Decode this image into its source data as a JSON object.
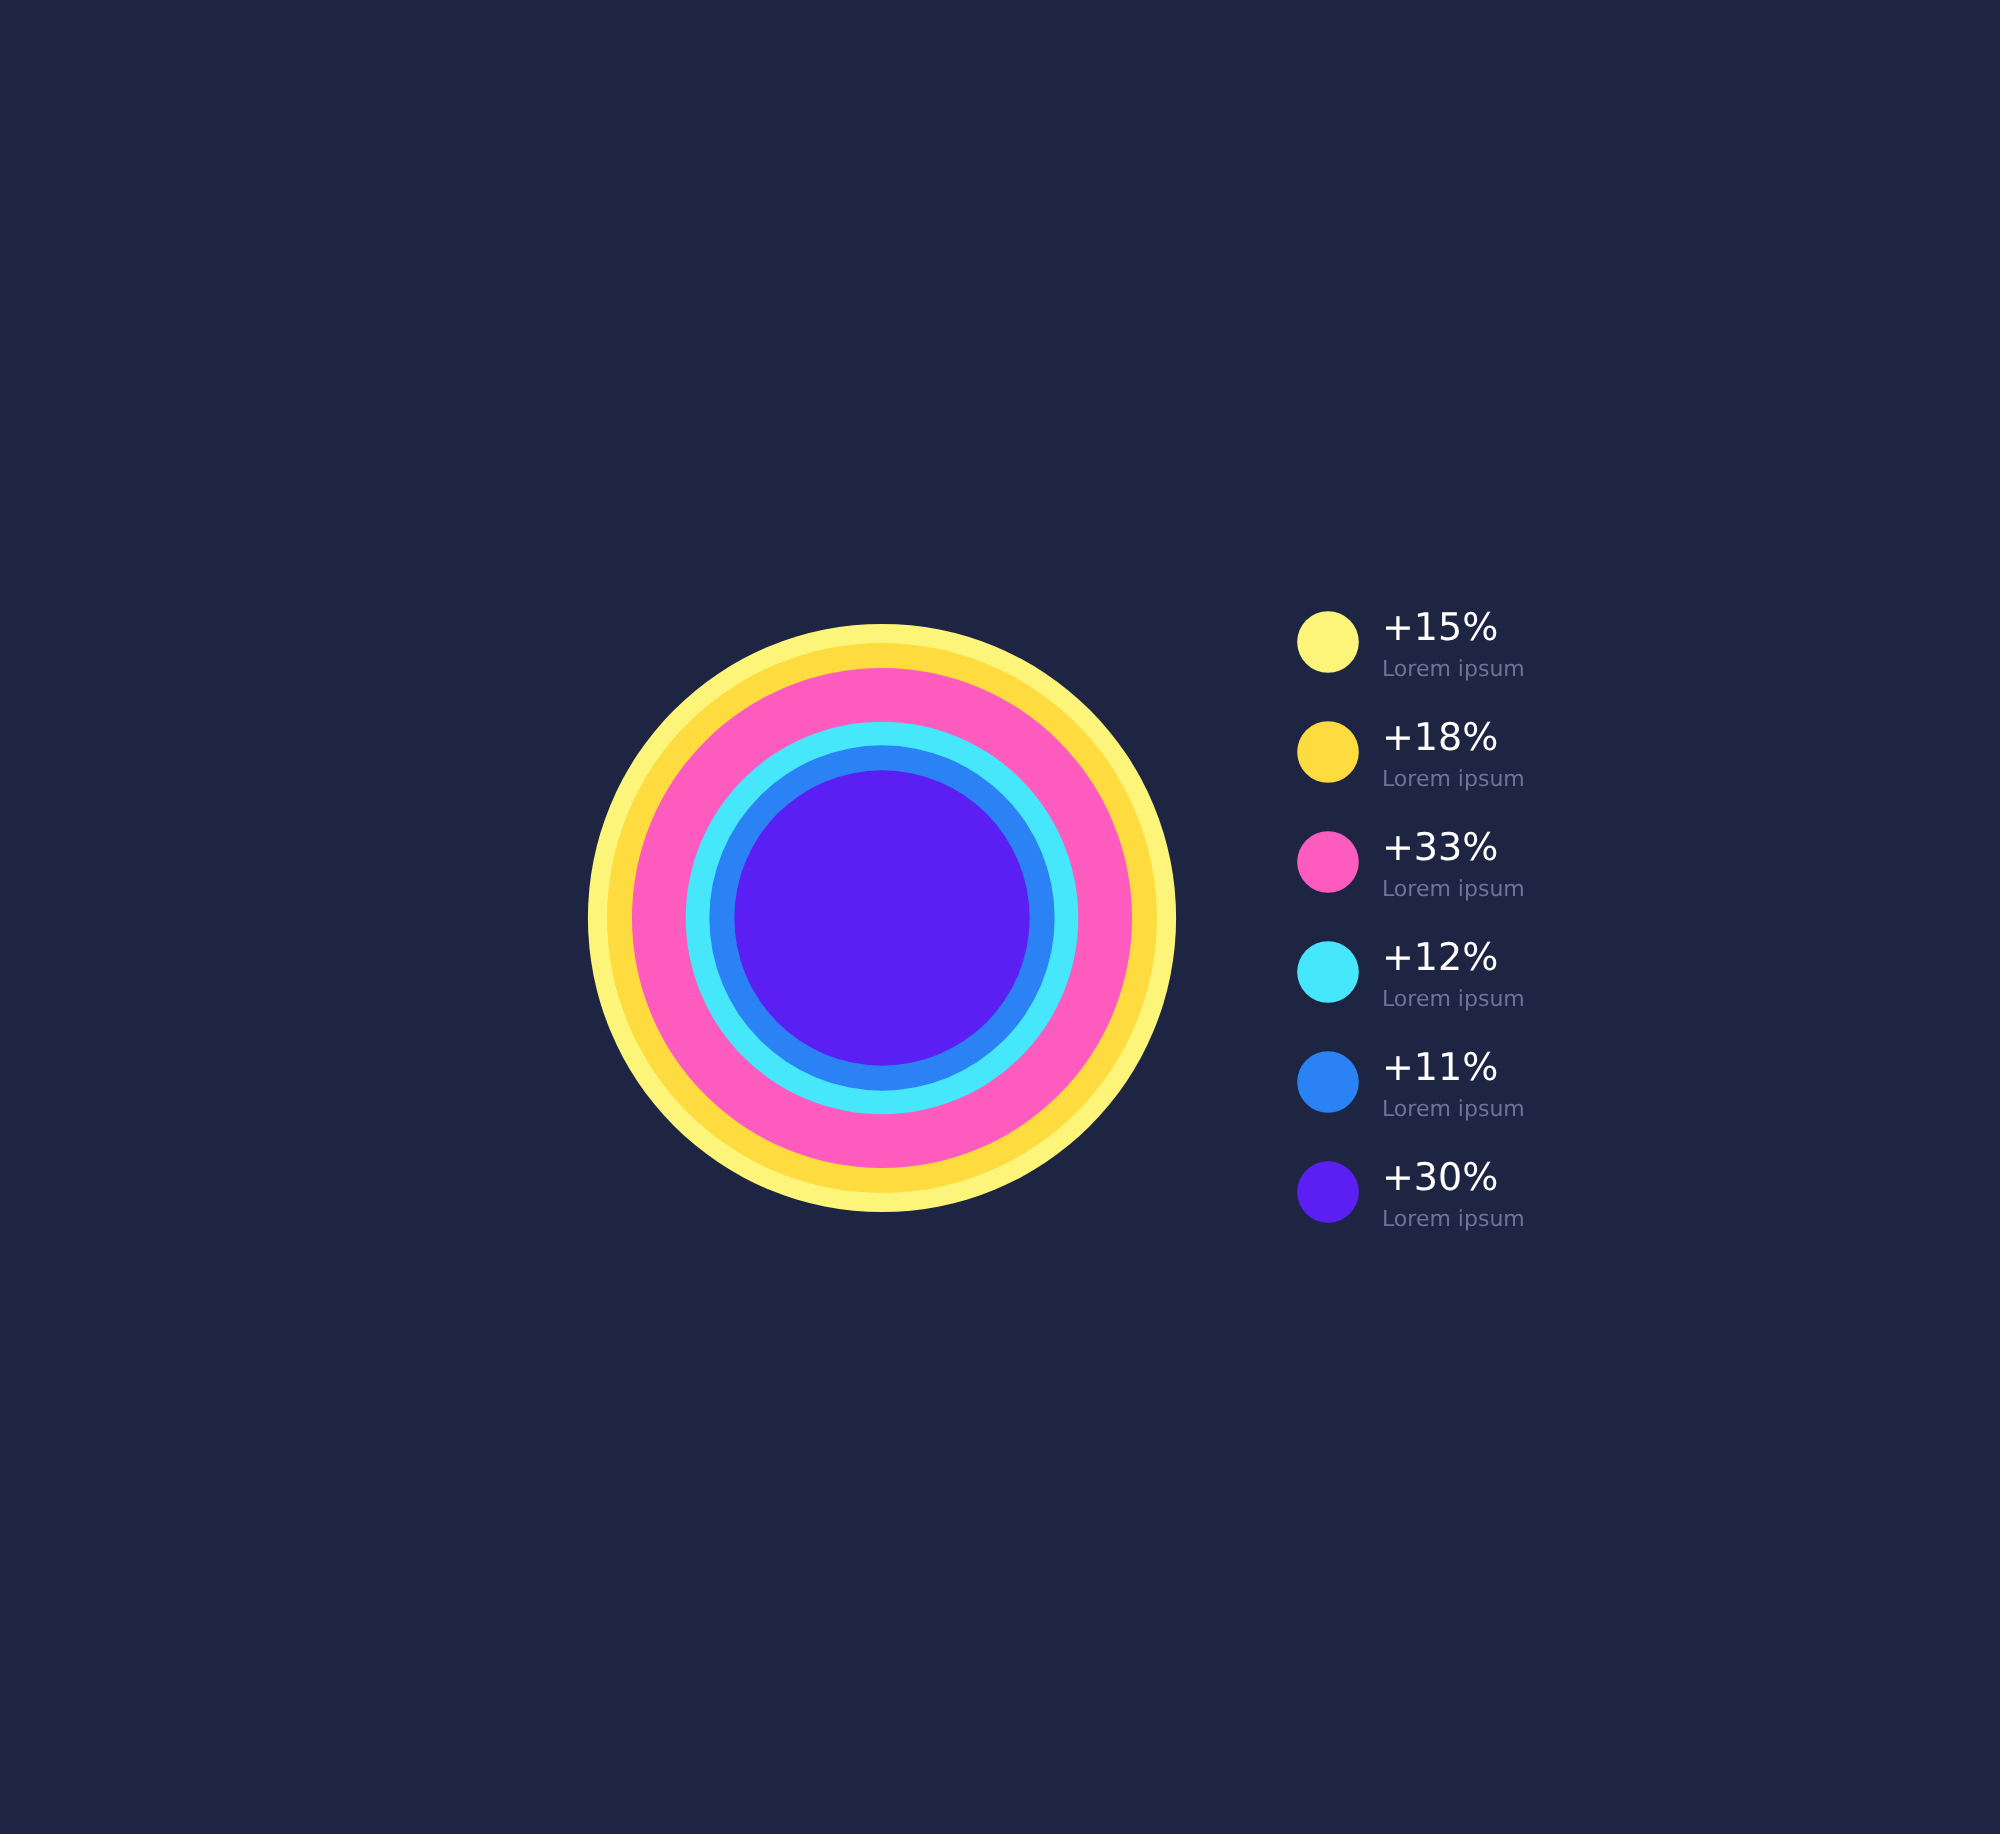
{
  "chart_data": {
    "type": "other",
    "categories": [
      "Lorem ipsum",
      "Lorem ipsum",
      "Lorem ipsum",
      "Lorem ipsum",
      "Lorem ipsum",
      "Lorem ipsum"
    ],
    "values": [
      15,
      18,
      33,
      12,
      11,
      30
    ],
    "value_labels": [
      "+15%",
      "+18%",
      "+33%",
      "+12%",
      "+11%",
      "+30%"
    ],
    "colors": [
      "#fdf57a",
      "#fedb3f",
      "#fe5bbf",
      "#46e6fb",
      "#2a82f4",
      "#5b1ff4"
    ]
  }
}
